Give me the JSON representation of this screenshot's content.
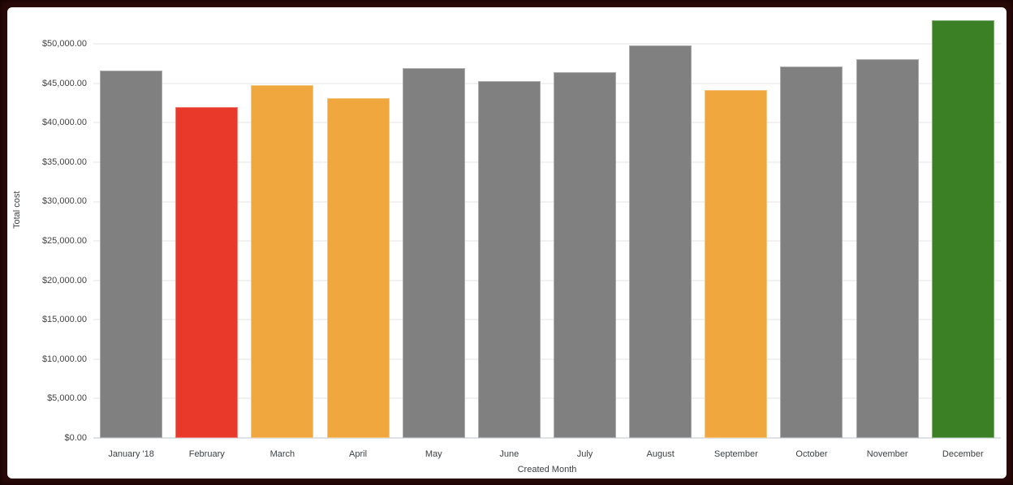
{
  "colors": {
    "frame": "#2a0909",
    "panel_background": "#ffffff",
    "gridline": "#f1f1f1",
    "axis_line": "#dde2e8",
    "text": "#3c4043",
    "bar_default": "#808080",
    "bar_red": "#e8392b",
    "bar_orange": "#f0a83e",
    "bar_green": "#3b8024"
  },
  "chart_data": {
    "type": "bar",
    "title": "",
    "xlabel": "Created Month",
    "ylabel": "Total cost",
    "categories": [
      "January '18",
      "February",
      "March",
      "April",
      "May",
      "June",
      "July",
      "August",
      "September",
      "October",
      "November",
      "December"
    ],
    "values": [
      46600,
      42000,
      44800,
      43100,
      46900,
      45300,
      46400,
      49800,
      44100,
      47100,
      48100,
      53000
    ],
    "bar_colors": [
      "#808080",
      "#e8392b",
      "#f0a83e",
      "#f0a83e",
      "#808080",
      "#808080",
      "#808080",
      "#808080",
      "#f0a83e",
      "#808080",
      "#808080",
      "#3b8024"
    ],
    "y_ticks": [
      {
        "value": 0,
        "label": "$0.00"
      },
      {
        "value": 5000,
        "label": "$5,000.00"
      },
      {
        "value": 10000,
        "label": "$10,000.00"
      },
      {
        "value": 15000,
        "label": "$15,000.00"
      },
      {
        "value": 20000,
        "label": "$20,000.00"
      },
      {
        "value": 25000,
        "label": "$25,000.00"
      },
      {
        "value": 30000,
        "label": "$30,000.00"
      },
      {
        "value": 35000,
        "label": "$35,000.00"
      },
      {
        "value": 40000,
        "label": "$40,000.00"
      },
      {
        "value": 45000,
        "label": "$45,000.00"
      },
      {
        "value": 50000,
        "label": "$50,000.00"
      }
    ],
    "ylim": [
      0,
      53000
    ],
    "grid": true,
    "legend": "none"
  }
}
